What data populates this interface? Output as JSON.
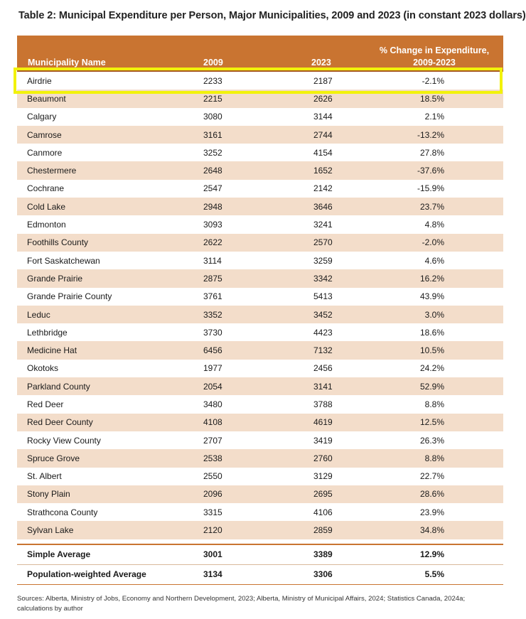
{
  "title": "Table 2: Municipal Expenditure per Person, Major Municipalities, 2009 and 2023 (in constant 2023 dollars)",
  "header": {
    "name": "Municipality Name",
    "y2009": "2009",
    "y2023": "2023",
    "change_line1": "% Change in Expenditure,",
    "change_line2": "2009-2023"
  },
  "rows": [
    {
      "name": "Airdrie",
      "y2009": "2233",
      "y2023": "2187",
      "change": "-2.1%"
    },
    {
      "name": "Beaumont",
      "y2009": "2215",
      "y2023": "2626",
      "change": "18.5%"
    },
    {
      "name": "Calgary",
      "y2009": "3080",
      "y2023": "3144",
      "change": "2.1%"
    },
    {
      "name": "Camrose",
      "y2009": "3161",
      "y2023": "2744",
      "change": "-13.2%"
    },
    {
      "name": "Canmore",
      "y2009": "3252",
      "y2023": "4154",
      "change": "27.8%"
    },
    {
      "name": "Chestermere",
      "y2009": "2648",
      "y2023": "1652",
      "change": "-37.6%"
    },
    {
      "name": "Cochrane",
      "y2009": "2547",
      "y2023": "2142",
      "change": "-15.9%"
    },
    {
      "name": "Cold Lake",
      "y2009": "2948",
      "y2023": "3646",
      "change": "23.7%"
    },
    {
      "name": "Edmonton",
      "y2009": "3093",
      "y2023": "3241",
      "change": "4.8%"
    },
    {
      "name": "Foothills County",
      "y2009": "2622",
      "y2023": "2570",
      "change": "-2.0%"
    },
    {
      "name": "Fort Saskatchewan",
      "y2009": "3114",
      "y2023": "3259",
      "change": "4.6%"
    },
    {
      "name": "Grande Prairie",
      "y2009": "2875",
      "y2023": "3342",
      "change": "16.2%"
    },
    {
      "name": "Grande Prairie County",
      "y2009": "3761",
      "y2023": "5413",
      "change": "43.9%"
    },
    {
      "name": "Leduc",
      "y2009": "3352",
      "y2023": "3452",
      "change": "3.0%"
    },
    {
      "name": "Lethbridge",
      "y2009": "3730",
      "y2023": "4423",
      "change": "18.6%"
    },
    {
      "name": "Medicine Hat",
      "y2009": "6456",
      "y2023": "7132",
      "change": "10.5%"
    },
    {
      "name": "Okotoks",
      "y2009": "1977",
      "y2023": "2456",
      "change": "24.2%"
    },
    {
      "name": "Parkland County",
      "y2009": "2054",
      "y2023": "3141",
      "change": "52.9%"
    },
    {
      "name": "Red Deer",
      "y2009": "3480",
      "y2023": "3788",
      "change": "8.8%"
    },
    {
      "name": "Red Deer County",
      "y2009": "4108",
      "y2023": "4619",
      "change": "12.5%"
    },
    {
      "name": "Rocky View County",
      "y2009": "2707",
      "y2023": "3419",
      "change": "26.3%"
    },
    {
      "name": "Spruce Grove",
      "y2009": "2538",
      "y2023": "2760",
      "change": "8.8%"
    },
    {
      "name": "St. Albert",
      "y2009": "2550",
      "y2023": "3129",
      "change": "22.7%"
    },
    {
      "name": "Stony Plain",
      "y2009": "2096",
      "y2023": "2695",
      "change": "28.6%"
    },
    {
      "name": "Strathcona County",
      "y2009": "3315",
      "y2023": "4106",
      "change": "23.9%"
    },
    {
      "name": "Sylvan Lake",
      "y2009": "2120",
      "y2023": "2859",
      "change": "34.8%"
    }
  ],
  "summary": [
    {
      "name": "Simple Average",
      "y2009": "3001",
      "y2023": "3389",
      "change": "12.9%"
    },
    {
      "name": "Population-weighted Average",
      "y2009": "3134",
      "y2023": "3306",
      "change": "5.5%"
    }
  ],
  "source_line1": "Sources: Alberta, Ministry of Jobs, Economy and Northern Development, 2023; Alberta, Ministry of Municipal Affairs, 2024; Statistics Canada, 2024a;",
  "source_line2": "calculations by author",
  "colors": {
    "header": "#c97431",
    "stripe": "#f3ddca",
    "highlight": "#f2f20a"
  }
}
